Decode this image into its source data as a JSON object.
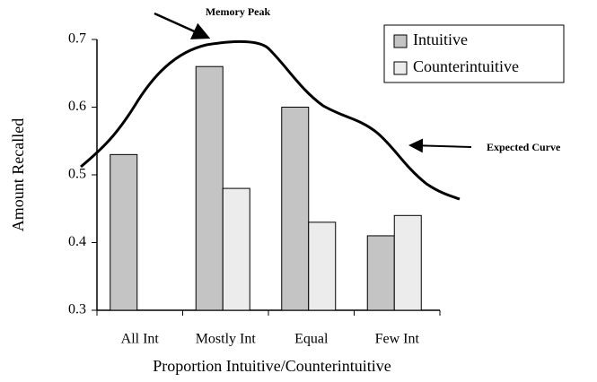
{
  "chart_data": {
    "type": "bar",
    "x_label": "Proportion Intuitive/Counterintuitive",
    "y_label": "Amount Recalled",
    "categories": [
      "All Int",
      "Mostly Int",
      "Equal",
      "Few Int"
    ],
    "series": [
      {
        "name": "Intuitive",
        "color": "#c4c4c4",
        "values": [
          0.53,
          0.66,
          0.6,
          0.41
        ]
      },
      {
        "name": "Counterintuitive",
        "color": "#ececec",
        "values": [
          null,
          0.48,
          0.43,
          0.44
        ]
      }
    ],
    "ylim": [
      0.3,
      0.7
    ],
    "yticks": [
      0.3,
      0.4,
      0.5,
      0.6,
      0.7
    ],
    "grid": false,
    "legend": "top-right",
    "annotations": [
      "Memory Peak",
      "Expected Curve"
    ]
  }
}
